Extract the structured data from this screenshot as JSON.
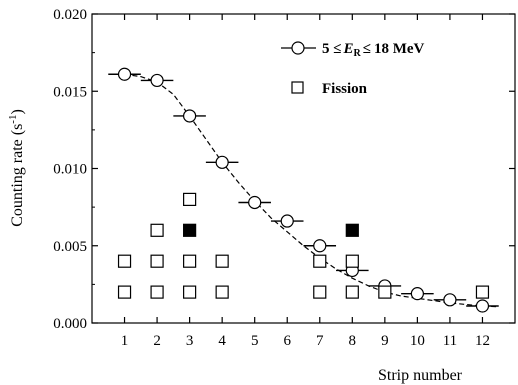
{
  "chart_data": {
    "type": "scatter",
    "title": "",
    "xlabel": "Strip number",
    "ylabel": "Counting rate (s-1)",
    "xlim": [
      0,
      13
    ],
    "ylim": [
      0,
      0.02
    ],
    "xticks": [
      1,
      2,
      3,
      4,
      5,
      6,
      7,
      8,
      9,
      10,
      11,
      12
    ],
    "yticks": [
      0.0,
      0.005,
      0.01,
      0.015,
      0.02
    ],
    "ytick_labels": [
      "0.000",
      "0.005",
      "0.010",
      "0.015",
      "0.020"
    ],
    "legend_position": "top-right",
    "grid": false,
    "series": [
      {
        "name": "5 < E_R < 18 MeV",
        "marker": "open-circle",
        "xerr": 0.5,
        "x": [
          1,
          2,
          3,
          4,
          5,
          6,
          7,
          8,
          9,
          10,
          11,
          12
        ],
        "y": [
          0.0161,
          0.0157,
          0.0134,
          0.0104,
          0.0078,
          0.0066,
          0.005,
          0.0034,
          0.0024,
          0.0019,
          0.0015,
          0.0011
        ]
      },
      {
        "name": "Fission",
        "marker": "open-square",
        "points": [
          [
            1,
            0.002
          ],
          [
            1,
            0.004
          ],
          [
            2,
            0.002
          ],
          [
            2,
            0.004
          ],
          [
            2,
            0.006
          ],
          [
            3,
            0.002
          ],
          [
            3,
            0.004
          ],
          [
            3,
            0.008
          ],
          [
            4,
            0.002
          ],
          [
            4,
            0.004
          ],
          [
            7,
            0.002
          ],
          [
            7,
            0.004
          ],
          [
            8,
            0.002
          ],
          [
            8,
            0.004
          ],
          [
            9,
            0.002
          ],
          [
            12,
            0.002
          ]
        ]
      },
      {
        "name": "",
        "marker": "filled-square",
        "points": [
          [
            3,
            0.006
          ],
          [
            8,
            0.006
          ]
        ]
      },
      {
        "name": "",
        "type": "dashed-fit-line",
        "x": [
          1,
          1.5,
          2,
          2.5,
          3,
          3.5,
          4,
          4.5,
          5,
          5.5,
          6,
          6.5,
          7,
          7.5,
          8,
          8.5,
          9,
          9.5,
          10,
          10.5,
          11,
          11.5,
          12,
          12.5
        ],
        "y": [
          0.0161,
          0.01595,
          0.0156,
          0.0148,
          0.0134,
          0.0119,
          0.0104,
          0.0091,
          0.0079,
          0.0068,
          0.0059,
          0.005,
          0.0042,
          0.0035,
          0.0029,
          0.0024,
          0.002,
          0.00175,
          0.0016,
          0.00145,
          0.0013,
          0.0012,
          0.0011,
          0.00105
        ]
      }
    ],
    "legend": {
      "circle_label_prefix": "5 ",
      "circle_label_leq": "≤",
      "circle_label_var": "E",
      "circle_label_sub": "R",
      "circle_label_suffix": "18 MeV",
      "square_label": "Fission"
    }
  }
}
